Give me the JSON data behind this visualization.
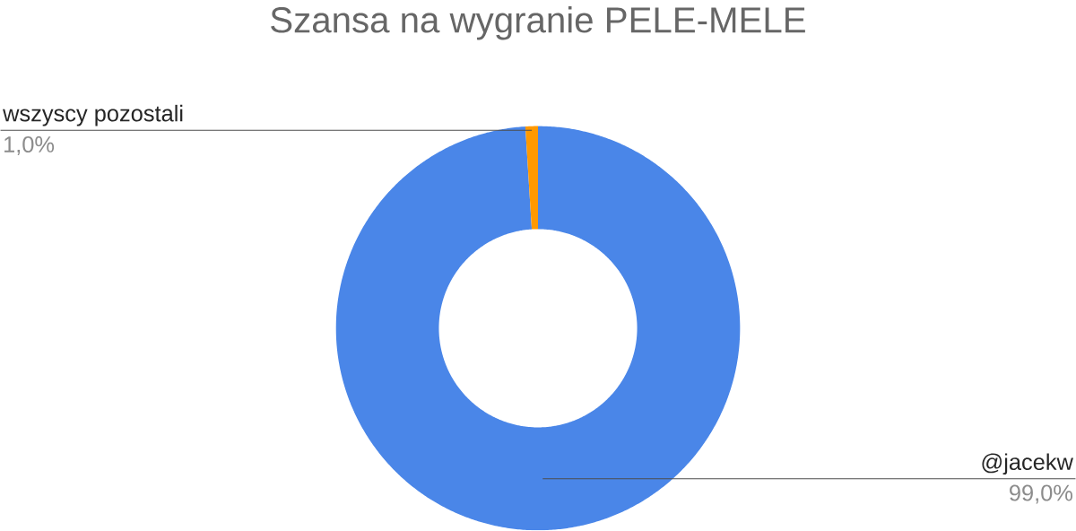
{
  "chart_data": {
    "type": "donut",
    "title": "Szansa na wygranie PELE-MELE",
    "categories": [
      "@jacekw",
      "wszyscy pozostali"
    ],
    "values": [
      99.0,
      1.0
    ],
    "colors": [
      "#4a86e8",
      "#ff9900"
    ],
    "value_labels": [
      "99,0%",
      "1,0%"
    ]
  }
}
